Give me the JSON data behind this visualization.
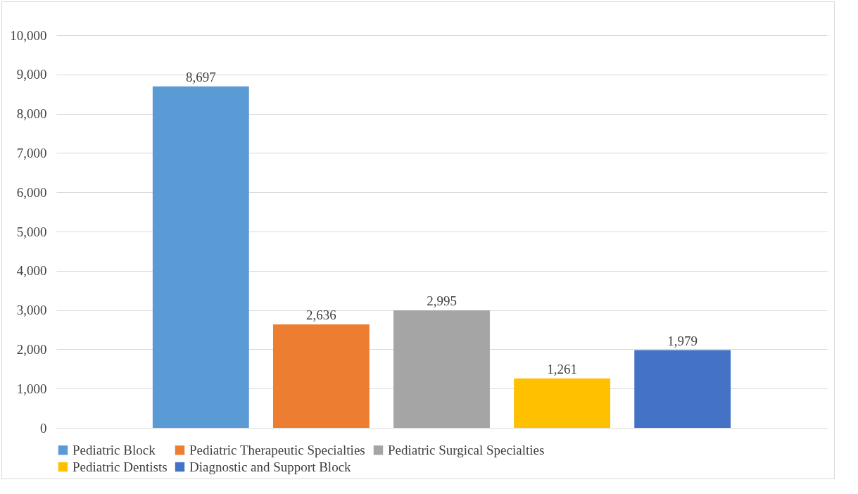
{
  "chart_data": {
    "type": "bar",
    "categories": [
      null
    ],
    "series": [
      {
        "name": "Pediatric Block",
        "color": "#5b9bd5",
        "values": [
          8697
        ],
        "value_labels": [
          "8,697"
        ]
      },
      {
        "name": "Pediatric Therapeutic Specialties",
        "color": "#ed7d31",
        "values": [
          2636
        ],
        "value_labels": [
          "2,636"
        ]
      },
      {
        "name": "Pediatric Surgical Specialties",
        "color": "#a5a5a5",
        "values": [
          2995
        ],
        "value_labels": [
          "2,995"
        ]
      },
      {
        "name": "Pediatric Dentists",
        "color": "#ffc000",
        "values": [
          1261
        ],
        "value_labels": [
          "1,261"
        ]
      },
      {
        "name": "Diagnostic and Support Block",
        "color": "#4472c4",
        "values": [
          1979
        ],
        "value_labels": [
          "1,979"
        ]
      }
    ],
    "ylim": [
      0,
      10000
    ],
    "yticks": [
      0,
      {
        "value": 1000,
        "label": "1,000"
      },
      {
        "value": 2000,
        "label": "2,000"
      },
      {
        "value": 3000,
        "label": "3,000"
      },
      {
        "value": 4000,
        "label": "4,000"
      },
      {
        "value": 5000,
        "label": "5,000"
      },
      {
        "value": 6000,
        "label": "6,000"
      },
      {
        "value": 7000,
        "label": "7,000"
      },
      {
        "value": 8000,
        "label": "8,000"
      },
      {
        "value": 9000,
        "label": "9,000"
      },
      {
        "value": 10000,
        "label": "10,000"
      }
    ],
    "grid": "y",
    "legend": "bottom"
  }
}
